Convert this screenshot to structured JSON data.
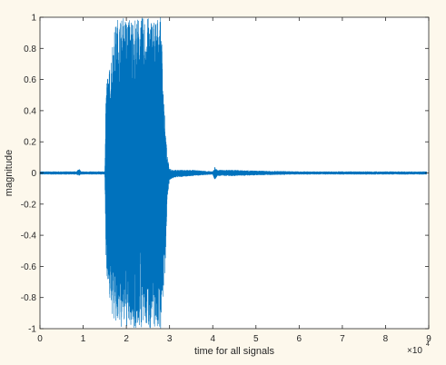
{
  "chart_data": {
    "type": "line",
    "xlabel": "time for all signals",
    "ylabel": "magnitude",
    "xlim": [
      0,
      90000
    ],
    "ylim": [
      -1,
      1
    ],
    "x_ticks": [
      0,
      10000,
      20000,
      30000,
      40000,
      50000,
      60000,
      70000,
      80000,
      90000
    ],
    "x_tick_labels": [
      "0",
      "1",
      "2",
      "3",
      "4",
      "5",
      "6",
      "7",
      "8",
      "9"
    ],
    "x_exponent_label": "×10",
    "x_exponent_power": "4",
    "y_ticks": [
      -1,
      -0.8,
      -0.6,
      -0.4,
      -0.2,
      0,
      0.2,
      0.4,
      0.6,
      0.8,
      1
    ],
    "y_tick_labels": [
      "-1",
      "-0.8",
      "-0.6",
      "-0.4",
      "-0.2",
      "0",
      "0.2",
      "0.4",
      "0.6",
      "0.8",
      "1"
    ],
    "grid": false,
    "line_color": "#0072bd",
    "series": [
      {
        "envelope": {
          "x": [
            0,
            8500,
            9000,
            9500,
            15000,
            15300,
            16000,
            17000,
            18000,
            19000,
            20000,
            21000,
            22000,
            23000,
            24000,
            25000,
            26000,
            27000,
            28000,
            29000,
            29500,
            30000,
            31000,
            35000,
            40000,
            40500,
            41000,
            45000,
            50000,
            60000,
            70000,
            80000,
            89500
          ],
          "upper": [
            0.01,
            0.01,
            0.03,
            0.01,
            0.01,
            0.6,
            0.65,
            0.9,
            1.0,
            1.0,
            1.0,
            1.0,
            1.0,
            1.0,
            1.0,
            1.0,
            1.0,
            1.0,
            1.0,
            0.3,
            0.1,
            0.03,
            0.02,
            0.02,
            0.01,
            0.04,
            0.02,
            0.02,
            0.015,
            0.01,
            0.01,
            0.01,
            0.01
          ],
          "lower": [
            -0.01,
            -0.01,
            -0.02,
            -0.01,
            -0.01,
            -0.6,
            -0.8,
            -0.95,
            -1.0,
            -1.0,
            -1.0,
            -1.0,
            -1.0,
            -1.0,
            -1.0,
            -1.0,
            -1.0,
            -1.0,
            -1.0,
            -0.6,
            -0.15,
            -0.05,
            -0.03,
            -0.02,
            -0.01,
            -0.05,
            -0.02,
            -0.02,
            -0.015,
            -0.01,
            -0.01,
            -0.01,
            -0.01
          ]
        }
      }
    ]
  }
}
